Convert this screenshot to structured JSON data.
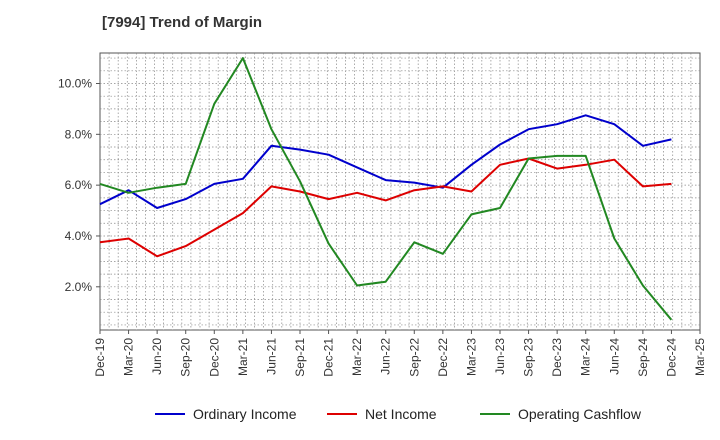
{
  "chart_data": {
    "type": "line",
    "title": "[7994]  Trend of Margin",
    "xlabel": "",
    "ylabel": "",
    "ylim": [
      0.3,
      11.2
    ],
    "y_ticks": [
      "2.0%",
      "4.0%",
      "6.0%",
      "8.0%",
      "10.0%"
    ],
    "x_ticks": [
      "Dec-19",
      "Mar-20",
      "Jun-20",
      "Sep-20",
      "Dec-20",
      "Mar-21",
      "Jun-21",
      "Sep-21",
      "Dec-21",
      "Mar-22",
      "Jun-22",
      "Sep-22",
      "Dec-22",
      "Mar-23",
      "Jun-23",
      "Sep-23",
      "Dec-23",
      "Mar-24",
      "Jun-24",
      "Sep-24",
      "Dec-24",
      "Mar-25"
    ],
    "grid": true,
    "legend_position": "bottom",
    "series": [
      {
        "name": "Ordinary Income",
        "color": "#0000cc",
        "values": [
          5.25,
          5.8,
          5.1,
          5.45,
          6.05,
          6.25,
          7.55,
          7.4,
          7.2,
          6.7,
          6.2,
          6.1,
          5.9,
          6.8,
          7.6,
          8.2,
          8.4,
          8.75,
          8.4,
          7.55,
          7.8
        ]
      },
      {
        "name": "Net Income",
        "color": "#dd0000",
        "values": [
          3.75,
          3.9,
          3.2,
          3.6,
          4.25,
          4.9,
          5.95,
          5.75,
          5.45,
          5.7,
          5.4,
          5.8,
          5.95,
          5.75,
          6.8,
          7.05,
          6.65,
          6.8,
          7.0,
          5.95,
          6.05
        ]
      },
      {
        "name": "Operating Cashflow",
        "color": "#228822",
        "values": [
          6.05,
          5.7,
          5.9,
          6.05,
          9.2,
          11.0,
          8.2,
          6.15,
          3.7,
          2.05,
          2.2,
          3.75,
          3.3,
          4.85,
          5.1,
          7.05,
          7.15,
          7.15,
          3.9,
          2.05,
          0.7
        ]
      }
    ]
  }
}
